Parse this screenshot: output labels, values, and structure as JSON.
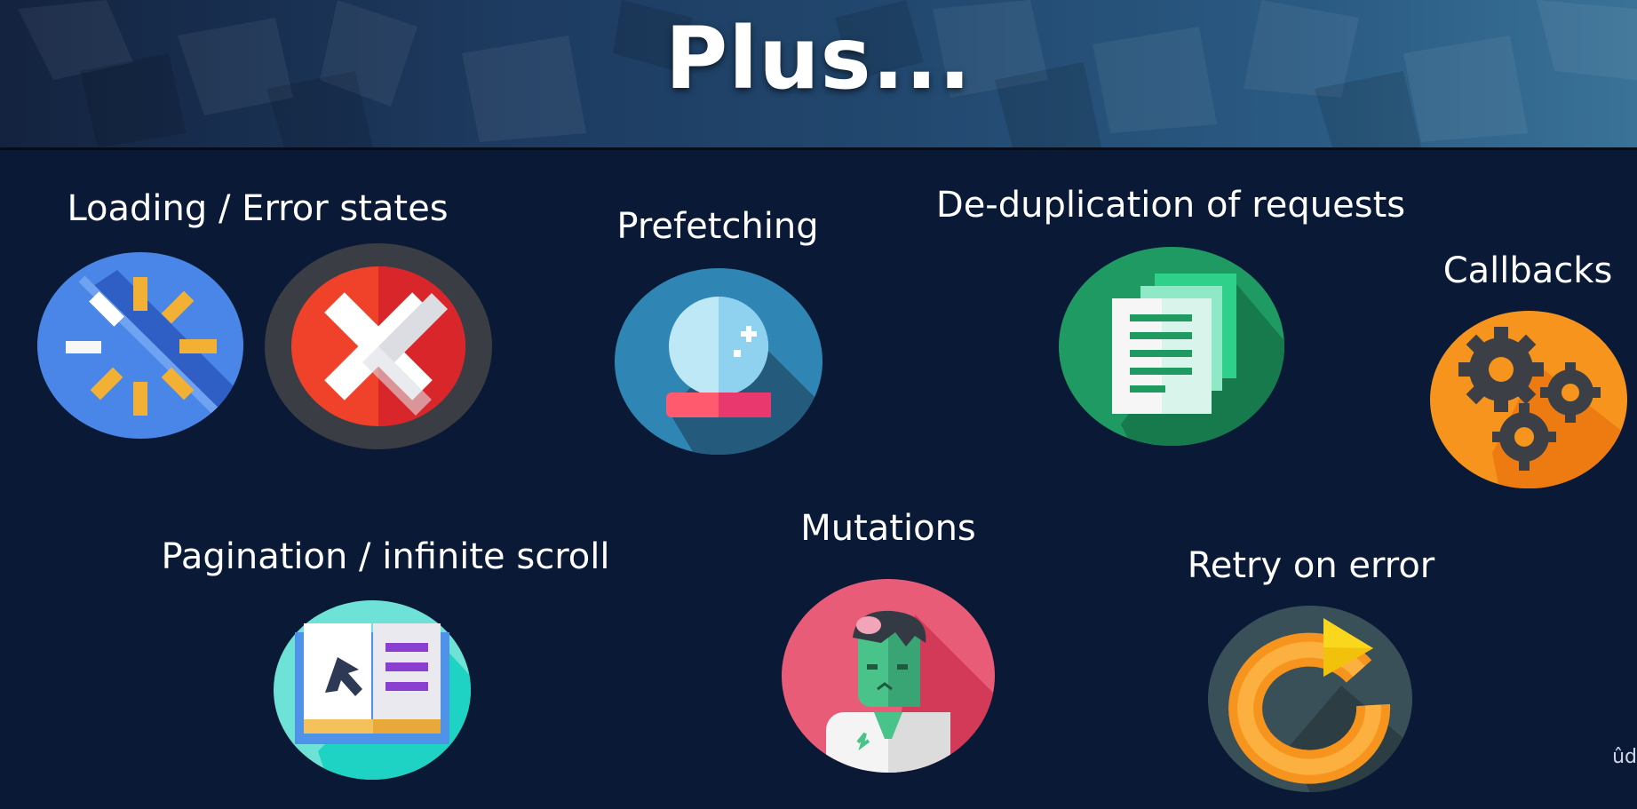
{
  "slide": {
    "title": "Plus...",
    "features": [
      {
        "label": "Loading / Error states",
        "icons": [
          "loading-spinner-icon",
          "error-x-icon"
        ]
      },
      {
        "label": "Prefetching",
        "icons": [
          "crystal-ball-icon"
        ]
      },
      {
        "label": "De-duplication of requests",
        "icons": [
          "duplicate-documents-icon"
        ]
      },
      {
        "label": "Callbacks",
        "icons": [
          "gears-icon"
        ]
      },
      {
        "label": "Pagination / infinite scroll",
        "icons": [
          "open-book-icon"
        ]
      },
      {
        "label": "Mutations",
        "icons": [
          "zombie-icon"
        ]
      },
      {
        "label": "Retry on error",
        "icons": [
          "retry-arrow-icon"
        ]
      }
    ],
    "watermark": "ûd"
  },
  "colors": {
    "background": "#0a1a36",
    "loading": "#3a6fd8",
    "error": "#e8372a",
    "prefetch": "#2f86b5",
    "dedupe": "#1f9a63",
    "callbacks": "#f7941d",
    "pagination": "#6fe2d8",
    "mutations": "#e85c78",
    "retry": "#3a5058"
  }
}
